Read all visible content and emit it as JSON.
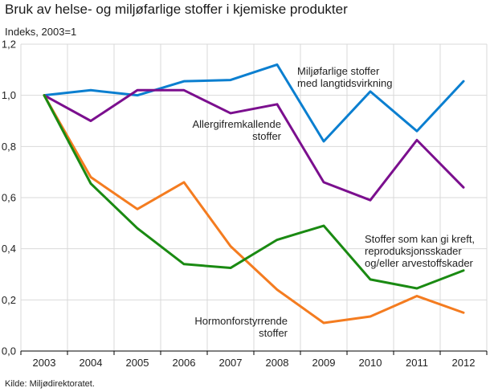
{
  "chart_data": {
    "type": "line",
    "title": "Bruk av helse- og miljøfarlige stoffer i kjemiske produkter",
    "ylabel": "Indeks, 2003=1",
    "xlabel": "",
    "source": "Kilde: Miljødirektoratet.",
    "x": [
      "2003",
      "2004",
      "2005",
      "2006",
      "2007",
      "2008",
      "2009",
      "2010",
      "2011",
      "2012"
    ],
    "ylim": [
      0,
      1.2
    ],
    "yticks": [
      "0,0",
      "0,2",
      "0,4",
      "0,6",
      "0,8",
      "1,0",
      "1,2"
    ],
    "grid": true,
    "legend": "none",
    "series": [
      {
        "name": "Miljøfarlige stoffer med langtidsvirkning",
        "color": "#0b7fd0",
        "values": [
          1.0,
          1.02,
          1.0,
          1.055,
          1.06,
          1.12,
          0.82,
          1.015,
          0.86,
          1.055
        ],
        "label_lines": [
          "Miljøfarlige stoffer",
          "med langtidsvirkning"
        ]
      },
      {
        "name": "Allergifremkallende stoffer",
        "color": "#7b0f8e",
        "values": [
          1.0,
          0.9,
          1.02,
          1.02,
          0.93,
          0.965,
          0.66,
          0.59,
          0.825,
          0.64
        ],
        "label_lines": [
          "Allergifremkallende",
          "stoffer"
        ]
      },
      {
        "name": "Stoffer som kan gi kreft, reproduksjonsskader og/eller arvestoffskader",
        "color": "#1a8a12",
        "values": [
          1.0,
          0.655,
          0.48,
          0.34,
          0.325,
          0.435,
          0.49,
          0.28,
          0.245,
          0.315
        ],
        "label_lines": [
          "Stoffer som kan gi kreft,",
          "reproduksjonsskader",
          "og/eller arvestoffskader"
        ]
      },
      {
        "name": "Hormonforstyrrende stoffer",
        "color": "#f47c20",
        "values": [
          1.0,
          0.68,
          0.555,
          0.66,
          0.41,
          0.24,
          0.11,
          0.135,
          0.215,
          0.15
        ],
        "label_lines": [
          "Hormonforstyrrende",
          "stoffer"
        ]
      }
    ]
  }
}
